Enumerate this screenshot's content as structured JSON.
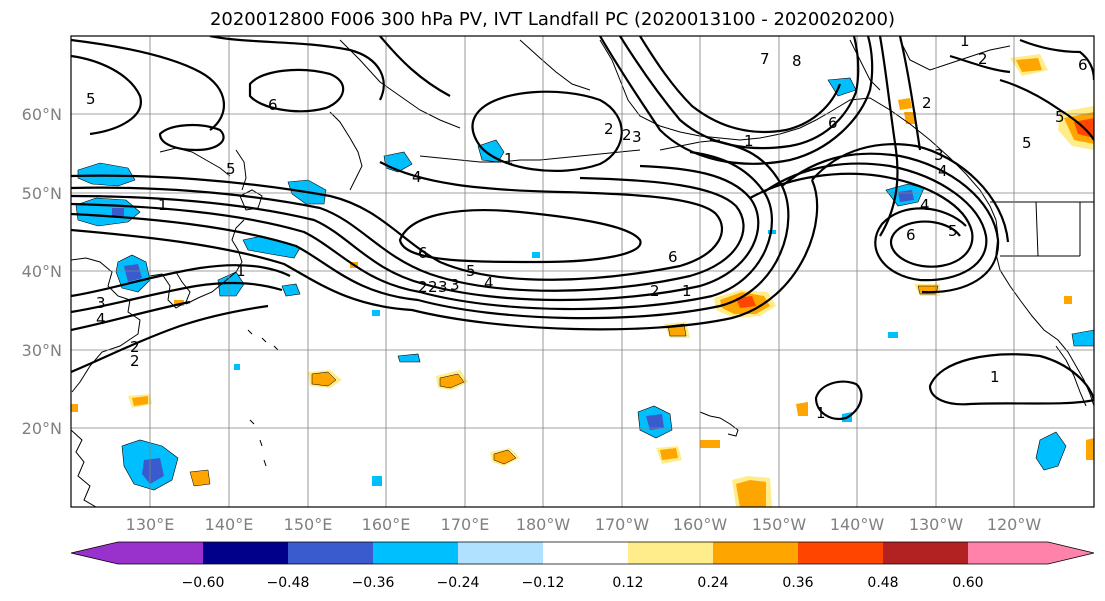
{
  "title": "2020012800 F006 300 hPa PV, IVT Landfall PC (2020013100 - 2020020200)",
  "lon_labels": [
    "130°E",
    "140°E",
    "150°E",
    "160°E",
    "170°E",
    "180°W",
    "170°W",
    "160°W",
    "150°W",
    "140°W",
    "130°W",
    "120°W"
  ],
  "lat_labels": [
    "60°N",
    "50°N",
    "40°N",
    "30°N",
    "20°N"
  ],
  "colorbar": {
    "ticks": [
      "−0.60",
      "−0.48",
      "−0.36",
      "−0.24",
      "−0.12",
      "0.12",
      "0.24",
      "0.36",
      "0.48",
      "0.60"
    ],
    "colors": [
      "#9932cc",
      "#00008b",
      "#3a5bcd",
      "#00bfff",
      "#b0e2ff",
      "#ffffff",
      "#ffec8b",
      "#ffa500",
      "#ff4500",
      "#b22222",
      "#ff82ab"
    ]
  },
  "contour_labels": [
    "5",
    "6",
    "7",
    "8",
    "2",
    "1",
    "2",
    "3",
    "1",
    "4",
    "5",
    "6",
    "1",
    "3",
    "2",
    "4",
    "3",
    "2",
    "6",
    "5",
    "4",
    "3",
    "2",
    "1",
    "6",
    "1",
    "5",
    "2",
    "6",
    "4",
    "5",
    "2",
    "5",
    "6",
    "1",
    "1",
    "1",
    "2",
    "3",
    "4",
    "2"
  ]
}
